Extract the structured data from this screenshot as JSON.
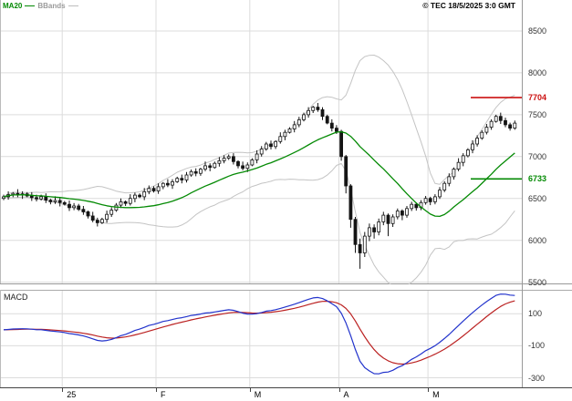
{
  "header": {
    "ma_label": "MA20",
    "bbands_label": "BBands",
    "copyright": "© TEC 18/5/2025 3:0 GMT"
  },
  "colors": {
    "ma": "#048a04",
    "bband": "#c4c4c4",
    "candle": "#141414",
    "grid": "#dcdcdc",
    "panel_border": "#999999",
    "resistance": "#cc1111",
    "support": "#048a04",
    "macd_line": "#2233cc",
    "macd_signal": "#bb2222"
  },
  "chart_data": {
    "type": "candlestick",
    "title": "",
    "y_ticks": [
      8500,
      8000,
      7500,
      7000,
      6500,
      6000,
      5500
    ],
    "price_ylim": [
      5474,
      8870
    ],
    "x_labels": [
      {
        "text": "25",
        "index": 13
      },
      {
        "text": "F",
        "index": 33
      },
      {
        "text": "M",
        "index": 53
      },
      {
        "text": "A",
        "index": 72
      },
      {
        "text": "M",
        "index": 91
      }
    ],
    "levels": [
      {
        "label": "7704",
        "value": 7704,
        "role": "resistance"
      },
      {
        "label": "6733",
        "value": 6733,
        "role": "support"
      }
    ],
    "overlays": [
      {
        "name": "MA20",
        "period": 20
      },
      {
        "name": "BBands",
        "period": 20,
        "stddev": 2
      }
    ],
    "macd": {
      "label": "MACD",
      "fast": 12,
      "slow": 26,
      "signal": 9,
      "ticks": [
        100,
        -100,
        -300
      ],
      "ylim": [
        -360,
        250
      ]
    },
    "candles": [
      [
        6500,
        6545,
        6480,
        6520
      ],
      [
        6520,
        6585,
        6485,
        6545
      ],
      [
        6545,
        6575,
        6515,
        6560
      ],
      [
        6560,
        6610,
        6515,
        6540
      ],
      [
        6540,
        6585,
        6495,
        6555
      ],
      [
        6555,
        6575,
        6515,
        6530
      ],
      [
        6530,
        6575,
        6470,
        6510
      ],
      [
        6510,
        6545,
        6465,
        6495
      ],
      [
        6495,
        6545,
        6475,
        6520
      ],
      [
        6520,
        6560,
        6445,
        6480
      ],
      [
        6480,
        6495,
        6430,
        6460
      ],
      [
        6460,
        6525,
        6435,
        6475
      ],
      [
        6475,
        6505,
        6405,
        6450
      ],
      [
        6450,
        6470,
        6415,
        6430
      ],
      [
        6430,
        6475,
        6350,
        6390
      ],
      [
        6390,
        6445,
        6360,
        6410
      ],
      [
        6410,
        6435,
        6350,
        6370
      ],
      [
        6370,
        6410,
        6305,
        6340
      ],
      [
        6340,
        6355,
        6260,
        6290
      ],
      [
        6290,
        6340,
        6215,
        6240
      ],
      [
        6240,
        6270,
        6165,
        6210
      ],
      [
        6210,
        6270,
        6195,
        6250
      ],
      [
        6250,
        6355,
        6210,
        6310
      ],
      [
        6310,
        6395,
        6280,
        6360
      ],
      [
        6360,
        6445,
        6340,
        6420
      ],
      [
        6420,
        6500,
        6385,
        6460
      ],
      [
        6460,
        6475,
        6410,
        6440
      ],
      [
        6440,
        6550,
        6415,
        6500
      ],
      [
        6500,
        6570,
        6455,
        6540
      ],
      [
        6540,
        6560,
        6505,
        6520
      ],
      [
        6520,
        6625,
        6480,
        6580
      ],
      [
        6580,
        6655,
        6550,
        6620
      ],
      [
        6620,
        6645,
        6570,
        6590
      ],
      [
        6590,
        6680,
        6555,
        6640
      ],
      [
        6640,
        6695,
        6610,
        6680
      ],
      [
        6680,
        6730,
        6635,
        6660
      ],
      [
        6660,
        6730,
        6615,
        6700
      ],
      [
        6700,
        6760,
        6685,
        6740
      ],
      [
        6740,
        6785,
        6680,
        6720
      ],
      [
        6720,
        6815,
        6690,
        6780
      ],
      [
        6780,
        6845,
        6760,
        6820
      ],
      [
        6820,
        6860,
        6765,
        6800
      ],
      [
        6800,
        6865,
        6770,
        6850
      ],
      [
        6850,
        6940,
        6825,
        6890
      ],
      [
        6890,
        6920,
        6825,
        6870
      ],
      [
        6870,
        6940,
        6855,
        6920
      ],
      [
        6920,
        6995,
        6880,
        6950
      ],
      [
        6950,
        7015,
        6920,
        6980
      ],
      [
        6980,
        7025,
        6960,
        7000
      ],
      [
        7000,
        7040,
        6905,
        6940
      ],
      [
        6940,
        6955,
        6860,
        6890
      ],
      [
        6890,
        6940,
        6835,
        6860
      ],
      [
        6860,
        6930,
        6815,
        6900
      ],
      [
        6900,
        6980,
        6885,
        6960
      ],
      [
        6960,
        7075,
        6920,
        7030
      ],
      [
        7030,
        7125,
        7000,
        7090
      ],
      [
        7090,
        7175,
        7070,
        7150
      ],
      [
        7150,
        7190,
        7085,
        7120
      ],
      [
        7120,
        7195,
        7090,
        7180
      ],
      [
        7180,
        7290,
        7155,
        7240
      ],
      [
        7240,
        7320,
        7195,
        7290
      ],
      [
        7290,
        7350,
        7275,
        7330
      ],
      [
        7330,
        7425,
        7290,
        7380
      ],
      [
        7380,
        7475,
        7350,
        7440
      ],
      [
        7440,
        7525,
        7420,
        7500
      ],
      [
        7500,
        7590,
        7465,
        7550
      ],
      [
        7550,
        7605,
        7520,
        7590
      ],
      [
        7590,
        7640,
        7535,
        7560
      ],
      [
        7560,
        7590,
        7435,
        7480
      ],
      [
        7480,
        7500,
        7385,
        7400
      ],
      [
        7400,
        7445,
        7300,
        7340
      ],
      [
        7340,
        7375,
        7270,
        7300
      ],
      [
        7300,
        7320,
        6950,
        7000
      ],
      [
        7000,
        7020,
        6560,
        6650
      ],
      [
        6650,
        6670,
        6150,
        6250
      ],
      [
        6250,
        6280,
        5850,
        5950
      ],
      [
        5950,
        6020,
        5660,
        5850
      ],
      [
        5850,
        6100,
        5800,
        6050
      ],
      [
        6050,
        6200,
        5990,
        6150
      ],
      [
        6150,
        6190,
        6020,
        6100
      ],
      [
        6100,
        6260,
        6060,
        6220
      ],
      [
        6220,
        6340,
        6180,
        6300
      ],
      [
        6300,
        6320,
        6050,
        6200
      ],
      [
        6200,
        6310,
        6160,
        6280
      ],
      [
        6280,
        6380,
        6250,
        6350
      ],
      [
        6350,
        6370,
        6240,
        6300
      ],
      [
        6300,
        6410,
        6270,
        6380
      ],
      [
        6380,
        6460,
        6350,
        6430
      ],
      [
        6430,
        6450,
        6355,
        6390
      ],
      [
        6390,
        6480,
        6360,
        6450
      ],
      [
        6450,
        6530,
        6425,
        6500
      ],
      [
        6500,
        6520,
        6420,
        6460
      ],
      [
        6460,
        6550,
        6430,
        6520
      ],
      [
        6520,
        6635,
        6495,
        6600
      ],
      [
        6600,
        6705,
        6575,
        6680
      ],
      [
        6680,
        6800,
        6645,
        6760
      ],
      [
        6760,
        6870,
        6725,
        6850
      ],
      [
        6850,
        6980,
        6825,
        6930
      ],
      [
        6930,
        7040,
        6885,
        7010
      ],
      [
        7010,
        7100,
        6990,
        7080
      ],
      [
        7080,
        7195,
        7040,
        7150
      ],
      [
        7150,
        7255,
        7120,
        7220
      ],
      [
        7220,
        7315,
        7200,
        7290
      ],
      [
        7290,
        7390,
        7265,
        7350
      ],
      [
        7350,
        7445,
        7320,
        7420
      ],
      [
        7420,
        7500,
        7405,
        7480
      ],
      [
        7480,
        7525,
        7390,
        7430
      ],
      [
        7430,
        7465,
        7350,
        7380
      ],
      [
        7380,
        7405,
        7310,
        7340
      ],
      [
        7340,
        7430,
        7320,
        7400
      ]
    ]
  }
}
